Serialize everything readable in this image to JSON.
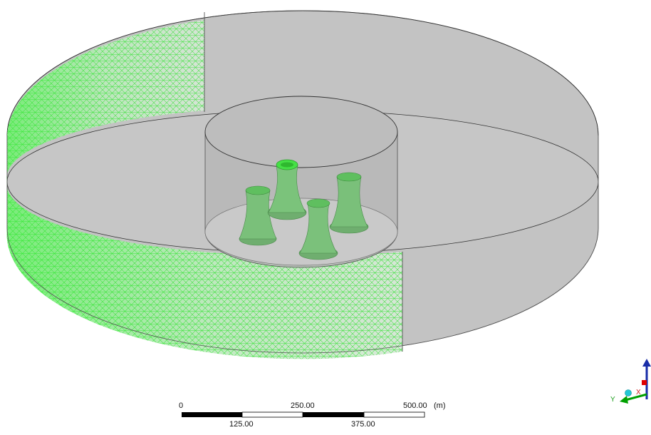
{
  "viewport": {
    "scale_bar": {
      "major": [
        "0",
        "250.00",
        "500.00"
      ],
      "minor": [
        "125.00",
        "375.00"
      ],
      "unit": "(m)"
    },
    "triad": {
      "x_label": "X",
      "y_label": "Y"
    },
    "colors": {
      "background": "#ffffff",
      "domain_fill": "#c0c0c0",
      "mesh": "#35e035",
      "tower_fill": "#6fbf6f",
      "x_axis": "#e00000",
      "y_axis": "#00a000",
      "z_axis": "#1a2ea8",
      "origin_ball": "#22c7d4"
    }
  }
}
